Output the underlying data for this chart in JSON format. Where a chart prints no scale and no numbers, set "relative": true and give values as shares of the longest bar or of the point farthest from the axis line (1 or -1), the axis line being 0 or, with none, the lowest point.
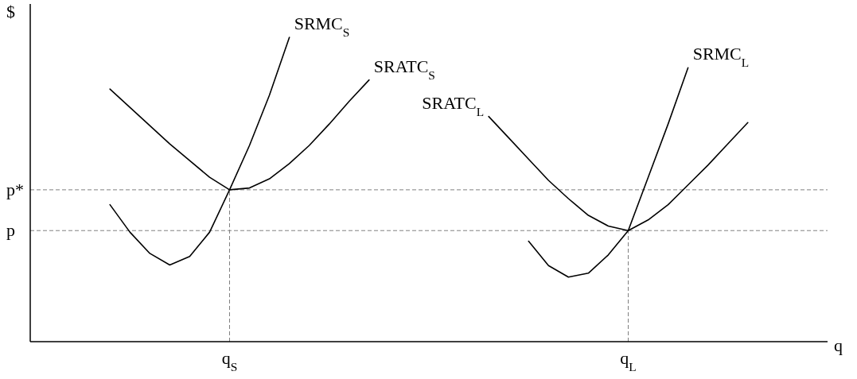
{
  "chart_data": {
    "type": "line",
    "relative": true,
    "xlabel": "q",
    "ylabel": "$",
    "line_style": "solid",
    "marker": "none",
    "legend": false,
    "categories": [
      null,
      null,
      null,
      null,
      null,
      null,
      null,
      null,
      null,
      null,
      "q$_{S}$",
      null,
      null,
      null,
      null,
      null,
      null,
      null,
      null,
      null,
      null,
      null,
      null,
      null,
      null,
      null,
      null,
      null,
      null,
      null,
      "q$_{L}$",
      null,
      null,
      null,
      null,
      null,
      null,
      null,
      null,
      null,
      null
    ],
    "series": [
      {
        "name": "SRATC$_{S}$",
        "color": "#000000",
        "values": [
          null,
          null,
          null,
          null,
          0.83,
          0.77,
          0.71,
          0.65,
          0.595,
          0.54,
          0.499,
          0.505,
          0.535,
          0.585,
          0.645,
          0.715,
          0.79,
          0.86,
          null,
          null,
          null,
          null,
          null,
          null,
          null,
          null,
          null,
          null,
          null,
          null,
          null,
          null,
          null,
          null,
          null,
          null,
          null,
          null,
          null,
          null,
          null
        ]
      },
      {
        "name": "SRMC$_{S}$",
        "color": "#000000",
        "values": [
          null,
          null,
          null,
          null,
          0.45,
          0.36,
          0.29,
          0.252,
          0.28,
          0.36,
          0.499,
          0.645,
          0.81,
          1,
          null,
          null,
          null,
          null,
          null,
          null,
          null,
          null,
          null,
          null,
          null,
          null,
          null,
          null,
          null,
          null,
          null,
          null,
          null,
          null,
          null,
          null,
          null,
          null,
          null,
          null,
          null
        ]
      },
      {
        "name": "SRMC$_{L}$",
        "color": "#000000",
        "values": [
          null,
          null,
          null,
          null,
          null,
          null,
          null,
          null,
          null,
          null,
          null,
          null,
          null,
          null,
          null,
          null,
          null,
          null,
          null,
          null,
          null,
          null,
          null,
          null,
          null,
          0.33,
          0.25,
          0.212,
          0.225,
          0.285,
          0.365,
          0.54,
          0.715,
          0.9,
          null,
          null,
          null,
          null,
          null,
          null,
          null
        ]
      },
      {
        "name": "SRATC$_{L}$",
        "color": "#000000",
        "values": [
          null,
          null,
          null,
          null,
          null,
          null,
          null,
          null,
          null,
          null,
          null,
          null,
          null,
          null,
          null,
          null,
          null,
          null,
          null,
          null,
          null,
          null,
          null,
          0.74,
          0.67,
          0.6,
          0.53,
          0.47,
          0.415,
          0.38,
          0.365,
          0.4,
          0.45,
          0.515,
          0.58,
          0.65,
          0.72,
          null,
          null,
          null,
          null
        ]
      }
    ],
    "ref_lines": [
      {
        "axis": "y",
        "value": 0.499,
        "label": "p*",
        "color": "#808080",
        "line_style": "dashed"
      },
      {
        "axis": "y",
        "value": 0.365,
        "label": "p",
        "color": "#808080",
        "line_style": "dashed"
      },
      {
        "axis": "x",
        "value": "q$_{S}$",
        "color": "#808080",
        "line_style": "dashed"
      },
      {
        "axis": "x",
        "value": "q$_{L}$",
        "color": "#808080",
        "line_style": "dashed"
      }
    ]
  }
}
